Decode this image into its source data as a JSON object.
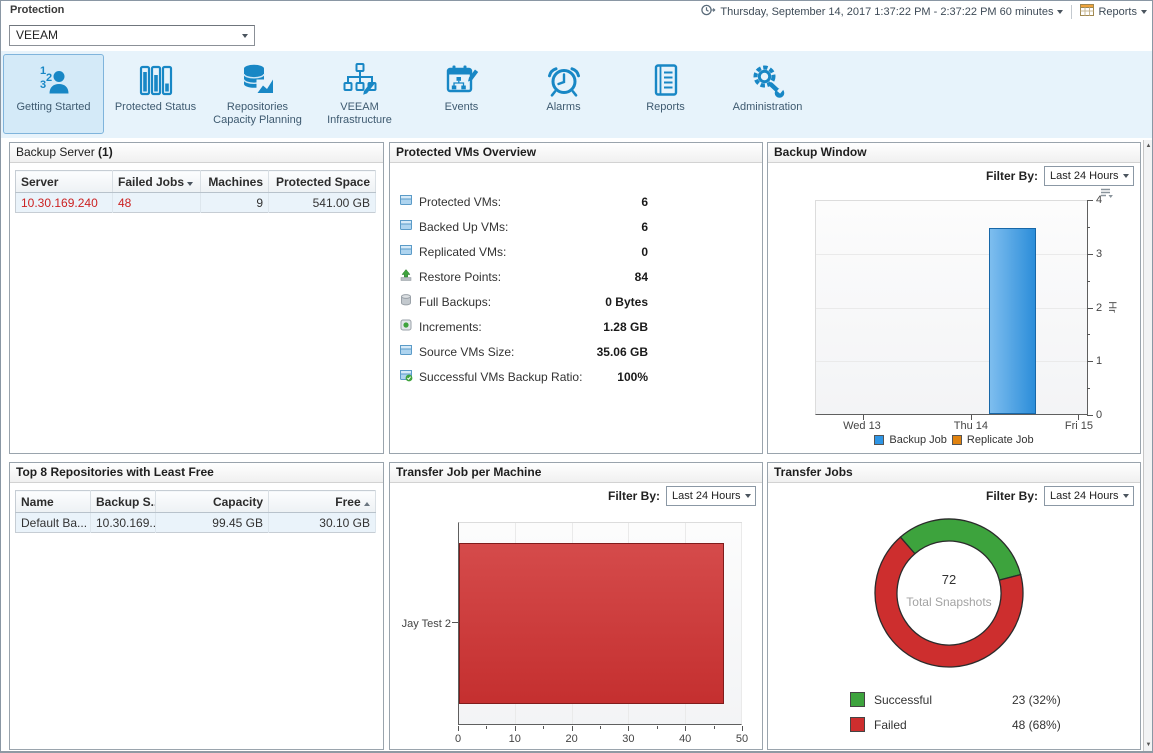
{
  "topbar": {
    "section_label": "Protection",
    "time_range": "Thursday, September 14, 2017 1:37:22 PM - 2:37:22 PM 60 minutes",
    "reports_label": "Reports"
  },
  "scope_dropdown": {
    "value": "VEEAM"
  },
  "toolbar": {
    "items": [
      {
        "label": "Getting Started",
        "icon": "getting-started-icon",
        "selected": true
      },
      {
        "label": "Protected Status",
        "icon": "protected-status-icon",
        "selected": false
      },
      {
        "label": "Repositories Capacity Planning",
        "icon": "repositories-capacity-planning-icon",
        "selected": false
      },
      {
        "label": "VEEAM Infrastructure",
        "icon": "veeam-infrastructure-icon",
        "selected": false
      },
      {
        "label": "Events",
        "icon": "events-icon",
        "selected": false
      },
      {
        "label": "Alarms",
        "icon": "alarms-icon",
        "selected": false
      },
      {
        "label": "Reports",
        "icon": "reports-icon",
        "selected": false
      },
      {
        "label": "Administration",
        "icon": "administration-icon",
        "selected": false
      }
    ]
  },
  "backup_server": {
    "title": "Backup Server",
    "count": "(1)",
    "columns": {
      "server": "Server",
      "failed_jobs": "Failed Jobs",
      "machines": "Machines",
      "protected_space": "Protected Space"
    },
    "sort": {
      "column": "Failed Jobs",
      "direction": "desc"
    },
    "row": {
      "server": "10.30.169.240",
      "failed_jobs": "48",
      "machines": "9",
      "protected_space": "541.00 GB"
    },
    "alert_color": "#cc2222"
  },
  "protected_vms": {
    "title": "Protected VMs Overview",
    "items": [
      {
        "icon": "vm-icon",
        "label": "Protected VMs:",
        "value": "6"
      },
      {
        "icon": "vm-icon",
        "label": "Backed Up VMs:",
        "value": "6"
      },
      {
        "icon": "vm-icon",
        "label": "Replicated VMs:",
        "value": "0"
      },
      {
        "icon": "restore-point-icon",
        "label": "Restore Points:",
        "value": "84"
      },
      {
        "icon": "disk-icon",
        "label": "Full Backups:",
        "value": "0 Bytes"
      },
      {
        "icon": "increment-icon",
        "label": "Increments:",
        "value": "1.28 GB"
      },
      {
        "icon": "vm-icon",
        "label": "Source VMs Size:",
        "value": "35.06 GB"
      },
      {
        "icon": "vm-check-icon",
        "label": "Successful VMs Backup Ratio:",
        "value": "100%"
      }
    ]
  },
  "backup_window": {
    "title": "Backup Window",
    "filter_label": "Filter By:",
    "filter_value": "Last 24 Hours"
  },
  "top_repositories": {
    "title": "Top 8 Repositories with Least Free",
    "columns": {
      "name": "Name",
      "backup_server": "Backup S...",
      "capacity": "Capacity",
      "free": "Free"
    },
    "sort": {
      "column": "Free",
      "direction": "asc"
    },
    "row": {
      "name": "Default Ba...",
      "backup_server": "10.30.169....",
      "capacity": "99.45 GB",
      "free": "30.10 GB"
    }
  },
  "transfer_job_per_machine": {
    "title": "Transfer Job per Machine",
    "filter_label": "Filter By:",
    "filter_value": "Last 24 Hours"
  },
  "transfer_jobs": {
    "title": "Transfer Jobs",
    "filter_label": "Filter By:",
    "filter_value": "Last 24 Hours",
    "center_value": "72",
    "center_label": "Total Snapshots",
    "legend": [
      {
        "label": "Successful",
        "value_text": "23 (32%)"
      },
      {
        "label": "Failed",
        "value_text": "48 (68%)"
      }
    ]
  },
  "chart_data": [
    {
      "id": "backup-window",
      "type": "bar",
      "title": "Backup Window",
      "categories": [
        "Wed 13",
        "Thu 14",
        "Fri 15"
      ],
      "series": [
        {
          "name": "Backup Job",
          "color": "#2e95e5",
          "bars": [
            {
              "position_hint": "between Thu 14 and Fri 15",
              "value": 3.5
            }
          ]
        },
        {
          "name": "Replicate Job",
          "color": "#e0820f",
          "bars": []
        }
      ],
      "ylabel": "Hr",
      "ylim": [
        0,
        4
      ],
      "y_ticks": [
        "4",
        "3",
        "2",
        "1",
        "0"
      ],
      "grid": "horizontal",
      "legend_position": "bottom"
    },
    {
      "id": "transfer-job-per-machine",
      "type": "bar-horizontal",
      "title": "Transfer Job per Machine",
      "categories": [
        "Jay Test 2"
      ],
      "values": [
        47
      ],
      "color": "#cf3232",
      "xlim": [
        0,
        50
      ],
      "x_ticks": [
        "0",
        "10",
        "20",
        "30",
        "40",
        "50"
      ],
      "grid": "vertical"
    },
    {
      "id": "transfer-jobs",
      "type": "donut",
      "title": "Transfer Jobs",
      "center_value": "72",
      "center_label": "Total Snapshots",
      "slices": [
        {
          "label": "Successful",
          "value": 23,
          "pct": 32,
          "color": "#3da33d"
        },
        {
          "label": "Failed",
          "value": 48,
          "pct": 68,
          "color": "#cd2e2e"
        }
      ],
      "start_angle_deg": -41
    }
  ]
}
